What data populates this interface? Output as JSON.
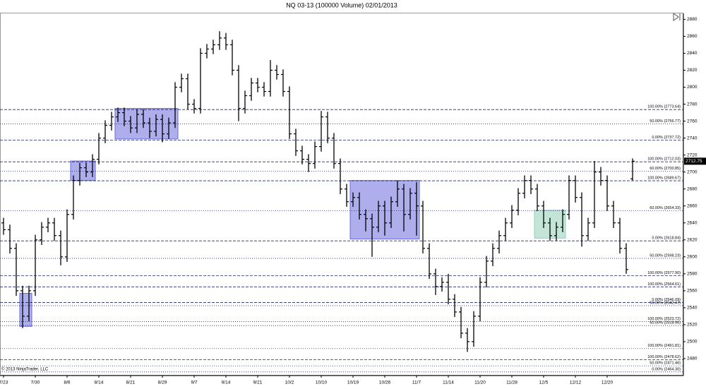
{
  "chart_data": {
    "type": "ohlc",
    "title": "NQ 03-13 (100000 Volume)  02/01/2013",
    "copyright": "© 2013 NinjaTrader, LLC",
    "color": "#000000",
    "ylim": [
      2460,
      2887
    ],
    "yticks": [
      2480,
      2500,
      2520,
      2540,
      2560,
      2580,
      2600,
      2620,
      2640,
      2660,
      2680,
      2700,
      2720,
      2740,
      2760,
      2780,
      2800,
      2820,
      2840,
      2860,
      2880
    ],
    "categories": [
      "7/23",
      null,
      null,
      null,
      null,
      "7/30",
      null,
      null,
      null,
      null,
      "8/6",
      null,
      null,
      null,
      null,
      "8/14",
      null,
      null,
      null,
      null,
      "8/21",
      null,
      null,
      null,
      null,
      "8/29",
      null,
      null,
      null,
      null,
      "9/7",
      null,
      null,
      null,
      null,
      "9/14",
      null,
      null,
      null,
      null,
      "9/21",
      null,
      null,
      null,
      null,
      "10/2",
      null,
      null,
      null,
      null,
      "10/10",
      null,
      null,
      null,
      null,
      "10/19",
      null,
      null,
      null,
      null,
      "10/26",
      null,
      null,
      null,
      null,
      "11/7",
      null,
      null,
      null,
      null,
      "11/14",
      null,
      null,
      null,
      null,
      "11/20",
      null,
      null,
      null,
      null,
      "11/28",
      null,
      null,
      null,
      null,
      "12/5",
      null,
      null,
      null,
      null,
      "12/12",
      null,
      null,
      null,
      null,
      "12/20",
      null,
      null,
      null,
      null
    ],
    "open": [
      2640,
      2632,
      2610,
      2560,
      2530,
      2560,
      2620,
      2635,
      2640,
      2625,
      2600,
      2650,
      2690,
      2705,
      2700,
      2715,
      2740,
      2755,
      2765,
      2770,
      2760,
      2752,
      2768,
      2758,
      2748,
      2762,
      2745,
      2758,
      2800,
      2810,
      2780,
      2775,
      2840,
      2845,
      2850,
      2858,
      2850,
      2820,
      2775,
      2790,
      2805,
      2800,
      2795,
      2820,
      2815,
      2795,
      2745,
      2725,
      2715,
      2710,
      2730,
      2765,
      2740,
      2710,
      2680,
      2665,
      2670,
      2650,
      2645,
      2635,
      2660,
      2640,
      2665,
      2680,
      2650,
      2675,
      2660,
      2610,
      2580,
      2565,
      2570,
      2550,
      2535,
      2510,
      2500,
      2530,
      2570,
      2595,
      2610,
      2625,
      2640,
      2655,
      2675,
      2690,
      2680,
      2660,
      2640,
      2625,
      2635,
      2650,
      2690,
      2670,
      2625,
      2640,
      2700,
      2690,
      2660,
      2640,
      2610,
      2692
    ],
    "high": [
      2646,
      2638,
      2616,
      2566,
      2566,
      2626,
      2641,
      2646,
      2646,
      2631,
      2656,
      2696,
      2711,
      2711,
      2721,
      2746,
      2761,
      2771,
      2776,
      2776,
      2766,
      2774,
      2774,
      2764,
      2768,
      2768,
      2764,
      2806,
      2816,
      2816,
      2786,
      2846,
      2851,
      2856,
      2866,
      2864,
      2856,
      2826,
      2796,
      2811,
      2811,
      2806,
      2832,
      2826,
      2821,
      2801,
      2751,
      2731,
      2721,
      2736,
      2772,
      2771,
      2746,
      2716,
      2686,
      2676,
      2676,
      2656,
      2651,
      2666,
      2666,
      2671,
      2690,
      2686,
      2681,
      2688,
      2666,
      2616,
      2586,
      2576,
      2580,
      2556,
      2541,
      2516,
      2536,
      2576,
      2601,
      2616,
      2631,
      2646,
      2661,
      2681,
      2696,
      2696,
      2686,
      2666,
      2646,
      2641,
      2656,
      2696,
      2696,
      2676,
      2646,
      2713,
      2706,
      2696,
      2666,
      2646,
      2616,
      2716
    ],
    "low": [
      2626,
      2604,
      2554,
      2516,
      2524,
      2554,
      2614,
      2629,
      2619,
      2590,
      2594,
      2644,
      2684,
      2694,
      2694,
      2709,
      2734,
      2749,
      2759,
      2754,
      2746,
      2746,
      2752,
      2740,
      2742,
      2735,
      2739,
      2752,
      2794,
      2774,
      2769,
      2769,
      2834,
      2839,
      2844,
      2844,
      2814,
      2760,
      2769,
      2784,
      2794,
      2789,
      2789,
      2809,
      2789,
      2739,
      2719,
      2709,
      2700,
      2704,
      2724,
      2734,
      2704,
      2674,
      2659,
      2659,
      2644,
      2630,
      2600,
      2629,
      2625,
      2634,
      2659,
      2630,
      2644,
      2625,
      2604,
      2574,
      2555,
      2559,
      2544,
      2529,
      2504,
      2488,
      2494,
      2524,
      2564,
      2589,
      2604,
      2619,
      2634,
      2649,
      2669,
      2674,
      2654,
      2634,
      2619,
      2619,
      2629,
      2644,
      2664,
      2612,
      2619,
      2634,
      2684,
      2654,
      2634,
      2604,
      2580,
      2690
    ],
    "close": [
      2632,
      2610,
      2560,
      2530,
      2560,
      2620,
      2635,
      2640,
      2625,
      2600,
      2650,
      2690,
      2705,
      2700,
      2715,
      2740,
      2755,
      2765,
      2770,
      2760,
      2752,
      2768,
      2758,
      2748,
      2762,
      2745,
      2758,
      2800,
      2810,
      2780,
      2775,
      2840,
      2845,
      2850,
      2858,
      2850,
      2820,
      2775,
      2790,
      2805,
      2800,
      2795,
      2820,
      2815,
      2795,
      2745,
      2725,
      2715,
      2710,
      2730,
      2765,
      2740,
      2710,
      2680,
      2665,
      2670,
      2650,
      2645,
      2635,
      2660,
      2640,
      2665,
      2680,
      2650,
      2675,
      2660,
      2610,
      2580,
      2565,
      2570,
      2550,
      2535,
      2510,
      2500,
      2530,
      2570,
      2595,
      2610,
      2625,
      2640,
      2655,
      2675,
      2690,
      2680,
      2660,
      2640,
      2625,
      2635,
      2650,
      2690,
      2670,
      2625,
      2640,
      2700,
      2690,
      2660,
      2640,
      2610,
      2585,
      2712.75
    ],
    "last_price": 2712.75,
    "zones": [
      {
        "from": 3,
        "to": 4,
        "low": 2518,
        "high": 2557,
        "color": "#6b6bdc"
      },
      {
        "from": 11,
        "to": 14,
        "low": 2690,
        "high": 2713,
        "color": "#6b6bdc"
      },
      {
        "from": 18,
        "to": 27,
        "low": 2739,
        "high": 2775,
        "color": "#6b6bdc"
      },
      {
        "from": 55,
        "to": 65,
        "low": 2621,
        "high": 2690,
        "color": "#6b6bdc"
      },
      {
        "from": 84,
        "to": 88,
        "low": 2622,
        "high": 2655,
        "color": "#8fd0b8"
      }
    ],
    "levels": [
      {
        "value": 2773.64,
        "label": "100.00% (2773.64)",
        "dash": "dashed"
      },
      {
        "value": 2756.77,
        "label": "50.00% (2756.77)",
        "dash": "dotted"
      },
      {
        "value": 2737.72,
        "label": "0.00% (2737.72)",
        "dash": "dashed"
      },
      {
        "value": 2712.03,
        "label": "100.00% (2712.03)",
        "dash": "dashed"
      },
      {
        "value": 2700.85,
        "label": "60.00% (2700.85)",
        "dash": "dotted"
      },
      {
        "value": 2689.67,
        "label": "100.00% (2689.67)",
        "dash": "dashed"
      },
      {
        "value": 2654.33,
        "label": "60.00% (2654.33)",
        "dash": "dotted"
      },
      {
        "value": 2618.84,
        "label": "0.00% (2618.84)",
        "dash": "dashed"
      },
      {
        "value": 2598.23,
        "label": "50.00% (2598.23)",
        "dash": "dotted"
      },
      {
        "value": 2577.9,
        "label": "100.00% (2577.90)",
        "dash": "dashed"
      },
      {
        "value": 2564.61,
        "label": "100.00% (2564.61)",
        "dash": "dashed"
      },
      {
        "value": 2546.09,
        "label": "0.00% (2546.09)",
        "dash": "dashed"
      },
      {
        "value": 2542.47,
        "label": "50.00% (2542.47)",
        "dash": "dotted"
      },
      {
        "value": 2523.72,
        "label": "100.00% (2523.72)",
        "dash": "dotted"
      },
      {
        "value": 2518.96,
        "label": "50.00% (2518.96)",
        "dash": "dotted"
      },
      {
        "value": 2491.81,
        "label": "100.00% (2491.81)",
        "dash": "dotted"
      },
      {
        "value": 2478.62,
        "label": "100.00% (2478.62)",
        "dash": "dashed"
      },
      {
        "value": 2471.46,
        "label": "50.00% (2471.46)",
        "dash": "dotted"
      },
      {
        "value": 2464.3,
        "label": "0.00% (2464.30)",
        "dash": "dotted"
      }
    ]
  }
}
